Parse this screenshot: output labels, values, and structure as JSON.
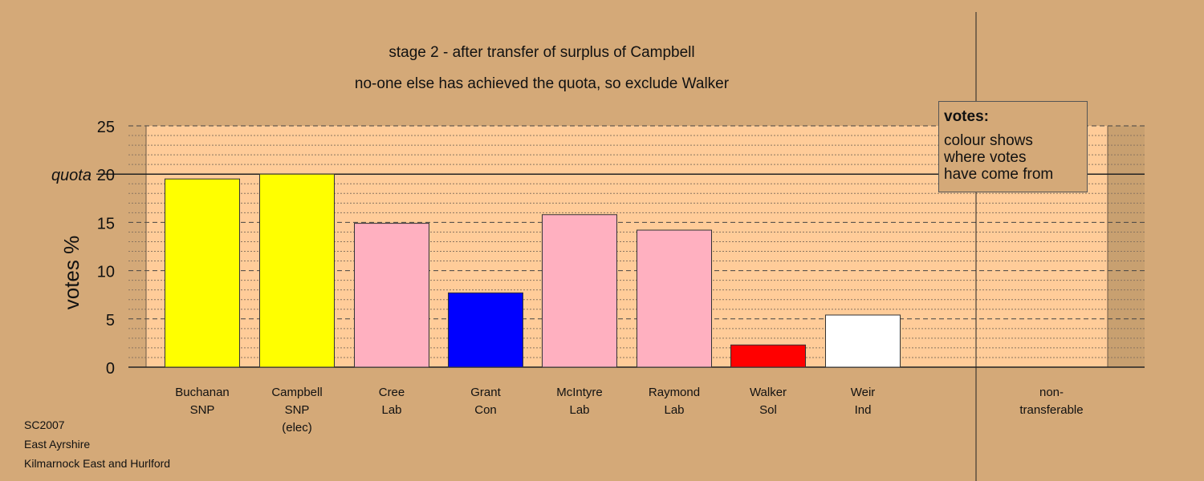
{
  "chart_data": {
    "type": "bar",
    "title": "stage 2 - after transfer of surplus of Campbell",
    "subtitle": "no-one else has achieved the quota, so exclude Walker",
    "ylabel": "votes %",
    "quota_label": "quota",
    "quota_value": 20,
    "ylim": [
      0,
      25
    ],
    "yticks": [
      0,
      5,
      10,
      15,
      20,
      25
    ],
    "grid": true,
    "categories": [
      [
        "Buchanan",
        "SNP"
      ],
      [
        "Campbell",
        "SNP",
        "(elec)"
      ],
      [
        "Cree",
        "Lab"
      ],
      [
        "Grant",
        "Con"
      ],
      [
        "McIntyre",
        "Lab"
      ],
      [
        "Raymond",
        "Lab"
      ],
      [
        "Walker",
        "Sol"
      ],
      [
        "Weir",
        "Ind"
      ],
      [
        "non-",
        "transferable"
      ]
    ],
    "values": [
      19.5,
      20.0,
      14.9,
      7.7,
      15.8,
      14.2,
      2.3,
      5.4,
      0
    ],
    "colors": [
      "#ffff00",
      "#ffff00",
      "#ffb0c0",
      "#0000ff",
      "#ffb0c0",
      "#ffb0c0",
      "#ff0000",
      "#ffffff",
      "#ffffff"
    ]
  },
  "legend": {
    "title": "votes:",
    "text": "colour shows\nwhere votes\nhave come from"
  },
  "footer": {
    "line1": "SC2007",
    "line2": "East Ayrshire",
    "line3": "Kilmarnock East and Hurlford"
  }
}
